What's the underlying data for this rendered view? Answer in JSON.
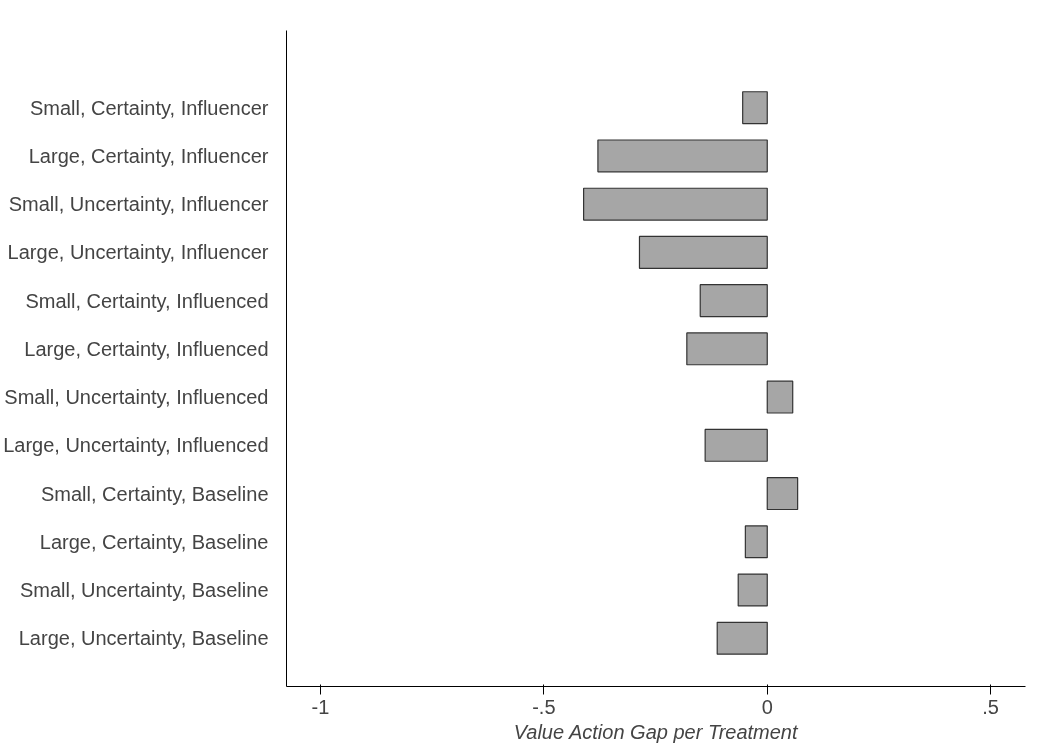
{
  "chart_data": {
    "type": "bar",
    "orientation": "horizontal",
    "xlabel": "Value Action Gap per Treatment",
    "categories": [
      "Small, Certainty, Influencer",
      "Large, Certainty, Influencer",
      "Small, Uncertainty, Influencer",
      "Large, Uncertainty, Influencer",
      "Small, Certainty, Influenced",
      "Large, Certainty, Influenced",
      "Small, Uncertainty, Influenced",
      "Large, Uncertainty, Influenced",
      "Small, Certainty, Baseline",
      "Large, Certainty, Baseline",
      "Small, Uncertainty, Baseline",
      "Large, Uncertainty, Baseline"
    ],
    "values": [
      -0.055,
      -0.379,
      -0.411,
      -0.286,
      -0.15,
      -0.18,
      0.057,
      -0.139,
      0.068,
      -0.049,
      -0.065,
      -0.112
    ],
    "color": "#a6a6a6",
    "xlim": [
      -1.076,
      0.578
    ],
    "xticks": [
      {
        "value": -1,
        "label": "-1"
      },
      {
        "value": -0.5,
        "label": "-.5"
      },
      {
        "value": 0,
        "label": "0"
      },
      {
        "value": 0.5,
        "label": ".5"
      }
    ],
    "grid": false
  }
}
